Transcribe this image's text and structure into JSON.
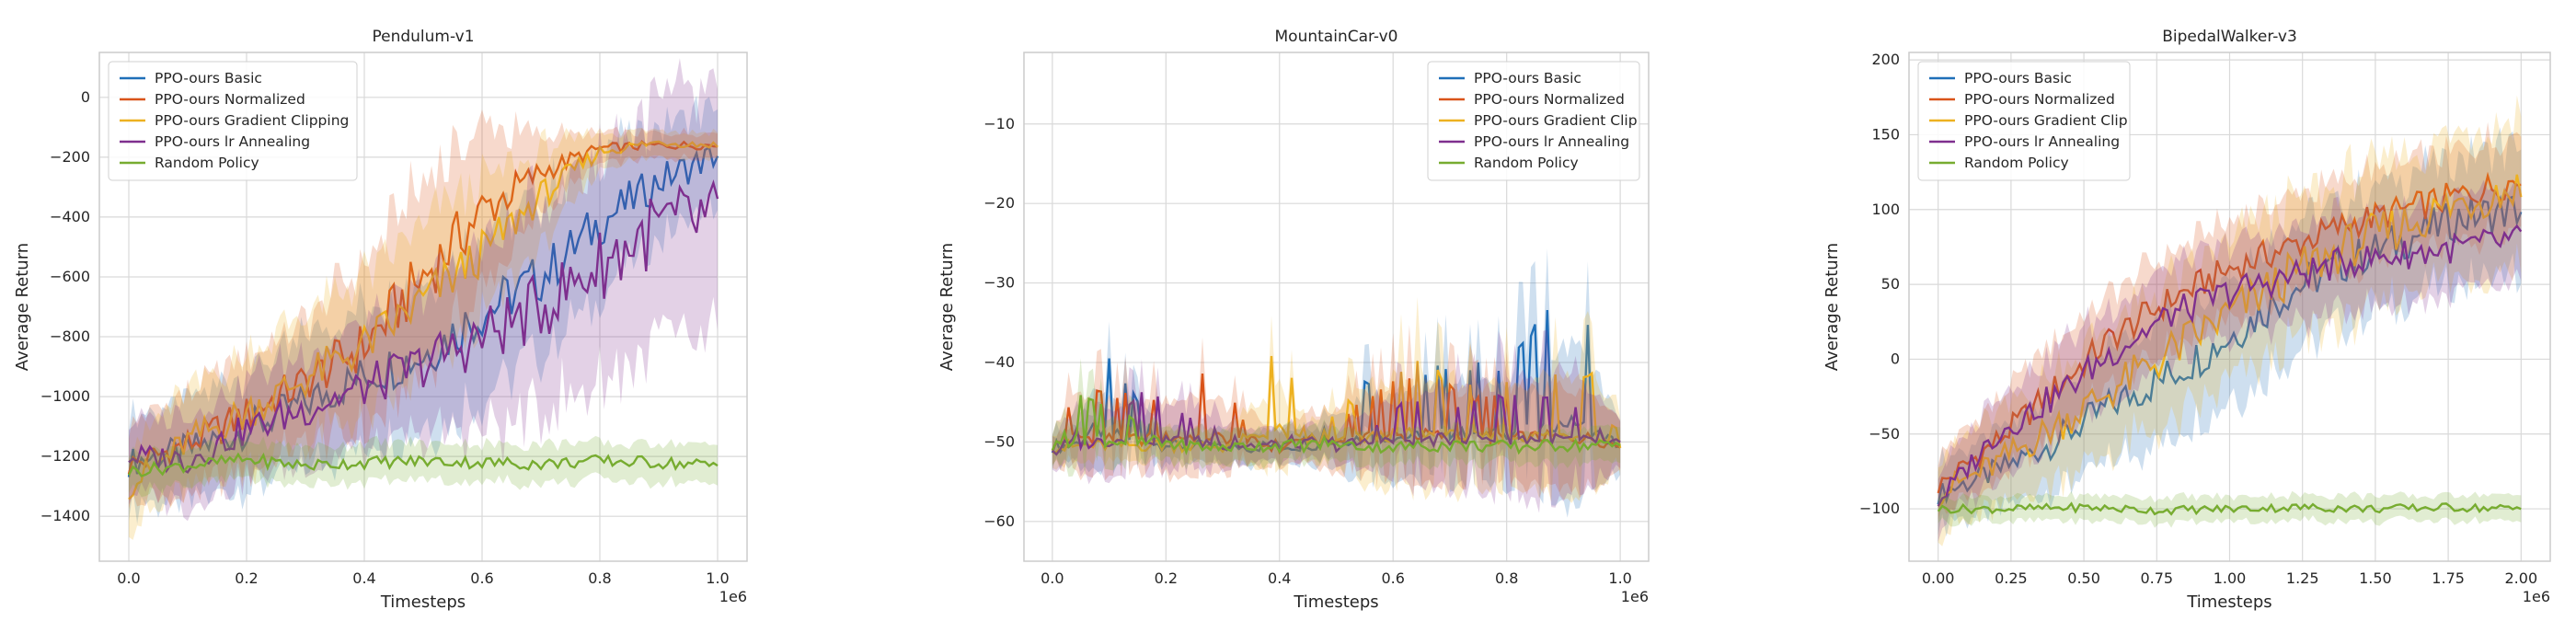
{
  "chart_data": [
    {
      "type": "line",
      "title": "Pendulum-v1",
      "xlabel": "Timesteps",
      "ylabel": "Average Return",
      "x_offset_label": "1e6",
      "xlim": [
        -0.05,
        1.05
      ],
      "ylim": [
        -1550,
        150
      ],
      "xticks": [
        0.0,
        0.2,
        0.4,
        0.6,
        0.8,
        1.0
      ],
      "xtick_labels": [
        "0.0",
        "0.2",
        "0.4",
        "0.6",
        "0.8",
        "1.0"
      ],
      "yticks": [
        -1400,
        -1200,
        -1000,
        -800,
        -600,
        -400,
        -200,
        0
      ],
      "ytick_labels": [
        "−1400",
        "−1200",
        "−1000",
        "−800",
        "−600",
        "−400",
        "−200",
        "0"
      ],
      "grid": true,
      "legend_position": "upper-left",
      "series": [
        {
          "name": "PPO-ours Basic",
          "color": "#1f6fb8",
          "x": [
            0,
            0.1,
            0.2,
            0.3,
            0.4,
            0.5,
            0.6,
            0.7,
            0.8,
            0.9,
            1.0
          ],
          "y": [
            -1220,
            -1180,
            -1110,
            -1020,
            -930,
            -860,
            -720,
            -600,
            -420,
            -280,
            -190
          ],
          "band": [
            140,
            160,
            180,
            200,
            220,
            240,
            260,
            250,
            230,
            180,
            150
          ]
        },
        {
          "name": "PPO-ours Normalized",
          "color": "#d95319",
          "x": [
            0,
            0.1,
            0.2,
            0.3,
            0.4,
            0.5,
            0.6,
            0.7,
            0.8,
            0.9,
            1.0
          ],
          "y": [
            -1230,
            -1160,
            -1060,
            -950,
            -830,
            -600,
            -380,
            -250,
            -170,
            -160,
            -160
          ],
          "band": [
            130,
            160,
            180,
            200,
            260,
            300,
            260,
            120,
            50,
            40,
            40
          ]
        },
        {
          "name": "PPO-ours Gradient Clipping",
          "color": "#edb120",
          "x": [
            0,
            0.1,
            0.2,
            0.3,
            0.4,
            0.5,
            0.6,
            0.7,
            0.8,
            0.9,
            1.0
          ],
          "y": [
            -1300,
            -1150,
            -1050,
            -940,
            -830,
            -680,
            -520,
            -330,
            -180,
            -150,
            -160
          ],
          "band": [
            130,
            160,
            180,
            200,
            220,
            240,
            220,
            150,
            60,
            40,
            40
          ]
        },
        {
          "name": "PPO-ours lr Annealing",
          "color": "#7e2f8e",
          "x": [
            0,
            0.1,
            0.2,
            0.3,
            0.4,
            0.5,
            0.6,
            0.7,
            0.8,
            0.9,
            1.0
          ],
          "y": [
            -1200,
            -1210,
            -1110,
            -1040,
            -970,
            -890,
            -800,
            -700,
            -560,
            -430,
            -410
          ],
          "band": [
            120,
            140,
            160,
            180,
            200,
            240,
            300,
            330,
            360,
            380,
            400
          ]
        },
        {
          "name": "Random Policy",
          "color": "#77ac30",
          "x": [
            0,
            0.1,
            0.2,
            0.3,
            0.4,
            0.5,
            0.6,
            0.7,
            0.8,
            0.9,
            1.0
          ],
          "y": [
            -1250,
            -1230,
            -1210,
            -1230,
            -1220,
            -1215,
            -1220,
            -1225,
            -1215,
            -1220,
            -1230
          ],
          "band": [
            60,
            60,
            60,
            60,
            60,
            60,
            60,
            60,
            60,
            60,
            60
          ]
        }
      ]
    },
    {
      "type": "line",
      "title": "MountainCar-v0",
      "xlabel": "Timesteps",
      "ylabel": "Average Return",
      "x_offset_label": "1e6",
      "xlim": [
        -0.05,
        1.05
      ],
      "ylim": [
        -65,
        -1
      ],
      "xticks": [
        0.0,
        0.2,
        0.4,
        0.6,
        0.8,
        1.0
      ],
      "xtick_labels": [
        "0.0",
        "0.2",
        "0.4",
        "0.6",
        "0.8",
        "1.0"
      ],
      "yticks": [
        -60,
        -50,
        -40,
        -30,
        -20,
        -10
      ],
      "ytick_labels": [
        "−60",
        "−50",
        "−40",
        "−30",
        "−20",
        "−10"
      ],
      "grid": true,
      "legend_position": "upper-right",
      "series": [
        {
          "name": "PPO-ours Basic",
          "color": "#1f6fb8",
          "x": [
            0,
            0.04,
            0.07,
            0.2,
            0.3,
            0.45,
            0.56,
            0.62,
            0.7,
            0.78,
            0.85,
            0.92,
            1.0
          ],
          "y": [
            -51,
            -50,
            -37,
            -50,
            -51,
            -50,
            -42,
            -43,
            -40,
            -41,
            -36,
            -30,
            -50
          ],
          "band": [
            2,
            2,
            5,
            2,
            2,
            2,
            5,
            5,
            6,
            6,
            8,
            10,
            3
          ]
        },
        {
          "name": "PPO-ours Normalized",
          "color": "#d95319",
          "x": [
            0,
            0.04,
            0.15,
            0.27,
            0.4,
            0.56,
            0.66,
            0.75,
            0.85,
            0.95,
            1.0
          ],
          "y": [
            -51,
            -43,
            -45,
            -42,
            -51,
            -44,
            -41,
            -45,
            -43,
            -44,
            -50
          ],
          "band": [
            2,
            5,
            4,
            5,
            2,
            5,
            6,
            5,
            6,
            6,
            3
          ]
        },
        {
          "name": "PPO-ours Gradient Clip",
          "color": "#edb120",
          "x": [
            0,
            0.1,
            0.2,
            0.3,
            0.4,
            0.45,
            0.56,
            0.65,
            0.75,
            0.85,
            0.95,
            1.0
          ],
          "y": [
            -51,
            -50,
            -50,
            -51,
            -37,
            -50,
            -43,
            -40,
            -44,
            -42,
            -41,
            -50
          ],
          "band": [
            2,
            2,
            2,
            2,
            5,
            2,
            6,
            7,
            6,
            7,
            7,
            3
          ]
        },
        {
          "name": "PPO-ours lr Annealing",
          "color": "#7e2f8e",
          "x": [
            0,
            0.05,
            0.15,
            0.25,
            0.35,
            0.5,
            0.6,
            0.7,
            0.8,
            0.9,
            1.0
          ],
          "y": [
            -52,
            -48,
            -44,
            -47,
            -50,
            -50,
            -46,
            -45,
            -44,
            -45,
            -50
          ],
          "band": [
            2,
            4,
            4,
            4,
            2,
            2,
            5,
            6,
            7,
            8,
            3
          ]
        },
        {
          "name": "Random Policy",
          "color": "#77ac30",
          "x": [
            0,
            0.05,
            0.1,
            0.2,
            0.3,
            0.4,
            0.5,
            0.6,
            0.7,
            0.8,
            0.9,
            1.0
          ],
          "y": [
            -51,
            -44,
            -46,
            -50,
            -51,
            -50,
            -50,
            -51,
            -50,
            -51,
            -50,
            -50
          ],
          "band": [
            2,
            4,
            3,
            2,
            2,
            2,
            2,
            2,
            2,
            2,
            2,
            2
          ]
        }
      ]
    },
    {
      "type": "line",
      "title": "BipedalWalker-v3",
      "xlabel": "Timesteps",
      "ylabel": "Average Return",
      "x_offset_label": "1e6",
      "xlim": [
        -0.1,
        2.1
      ],
      "ylim": [
        -135,
        205
      ],
      "xticks": [
        0.0,
        0.25,
        0.5,
        0.75,
        1.0,
        1.25,
        1.5,
        1.75,
        2.0
      ],
      "xtick_labels": [
        "0.00",
        "0.25",
        "0.50",
        "0.75",
        "1.00",
        "1.25",
        "1.50",
        "1.75",
        "2.00"
      ],
      "yticks": [
        -100,
        -50,
        0,
        50,
        100,
        150,
        200
      ],
      "ytick_labels": [
        "−100",
        "−50",
        "0",
        "50",
        "100",
        "150",
        "200"
      ],
      "grid": true,
      "legend_position": "upper-left",
      "series": [
        {
          "name": "PPO-ours Basic",
          "color": "#1f6fb8",
          "x": [
            0,
            0.2,
            0.4,
            0.6,
            0.8,
            1.0,
            1.2,
            1.4,
            1.6,
            1.8,
            2.0
          ],
          "y": [
            -90,
            -75,
            -55,
            -30,
            -10,
            15,
            45,
            65,
            80,
            95,
            100
          ],
          "band": [
            20,
            25,
            30,
            35,
            40,
            40,
            40,
            40,
            40,
            40,
            40
          ]
        },
        {
          "name": "PPO-ours Normalized",
          "color": "#d95319",
          "x": [
            0,
            0.2,
            0.4,
            0.6,
            0.8,
            1.0,
            1.2,
            1.4,
            1.6,
            1.8,
            2.0
          ],
          "y": [
            -85,
            -55,
            -20,
            15,
            40,
            60,
            75,
            90,
            100,
            110,
            120
          ],
          "band": [
            20,
            25,
            30,
            30,
            30,
            30,
            30,
            30,
            30,
            30,
            30
          ]
        },
        {
          "name": "PPO-ours Gradient Clip",
          "color": "#edb120",
          "x": [
            0,
            0.2,
            0.4,
            0.6,
            0.8,
            1.0,
            1.2,
            1.4,
            1.6,
            1.8,
            2.0
          ],
          "y": [
            -90,
            -70,
            -45,
            -20,
            5,
            30,
            55,
            75,
            90,
            105,
            115
          ],
          "band": [
            25,
            30,
            35,
            40,
            45,
            45,
            45,
            45,
            45,
            45,
            45
          ]
        },
        {
          "name": "PPO-ours lr Annealing",
          "color": "#7e2f8e",
          "x": [
            0,
            0.2,
            0.4,
            0.6,
            0.8,
            1.0,
            1.2,
            1.4,
            1.6,
            1.8,
            2.0
          ],
          "y": [
            -95,
            -50,
            -25,
            5,
            30,
            45,
            55,
            65,
            70,
            75,
            80
          ],
          "band": [
            20,
            25,
            30,
            30,
            30,
            30,
            30,
            30,
            30,
            30,
            30
          ]
        },
        {
          "name": "Random Policy",
          "color": "#77ac30",
          "x": [
            0,
            0.25,
            0.5,
            0.75,
            1.0,
            1.25,
            1.5,
            1.75,
            2.0
          ],
          "y": [
            -100,
            -100,
            -99,
            -101,
            -100,
            -99,
            -100,
            -99,
            -100
          ],
          "band": [
            8,
            8,
            8,
            8,
            8,
            8,
            8,
            8,
            8
          ]
        }
      ]
    }
  ],
  "legend_labels": [
    [
      "PPO-ours Basic",
      "PPO-ours Normalized",
      "PPO-ours Gradient Clipping",
      "PPO-ours lr Annealing",
      "Random Policy"
    ],
    [
      "PPO-ours Basic",
      "PPO-ours Normalized",
      "PPO-ours Gradient Clip",
      "PPO-ours lr Annealing",
      "Random Policy"
    ],
    [
      "PPO-ours Basic",
      "PPO-ours Normalized",
      "PPO-ours Gradient Clip",
      "PPO-ours lr Annealing",
      "Random Policy"
    ]
  ]
}
